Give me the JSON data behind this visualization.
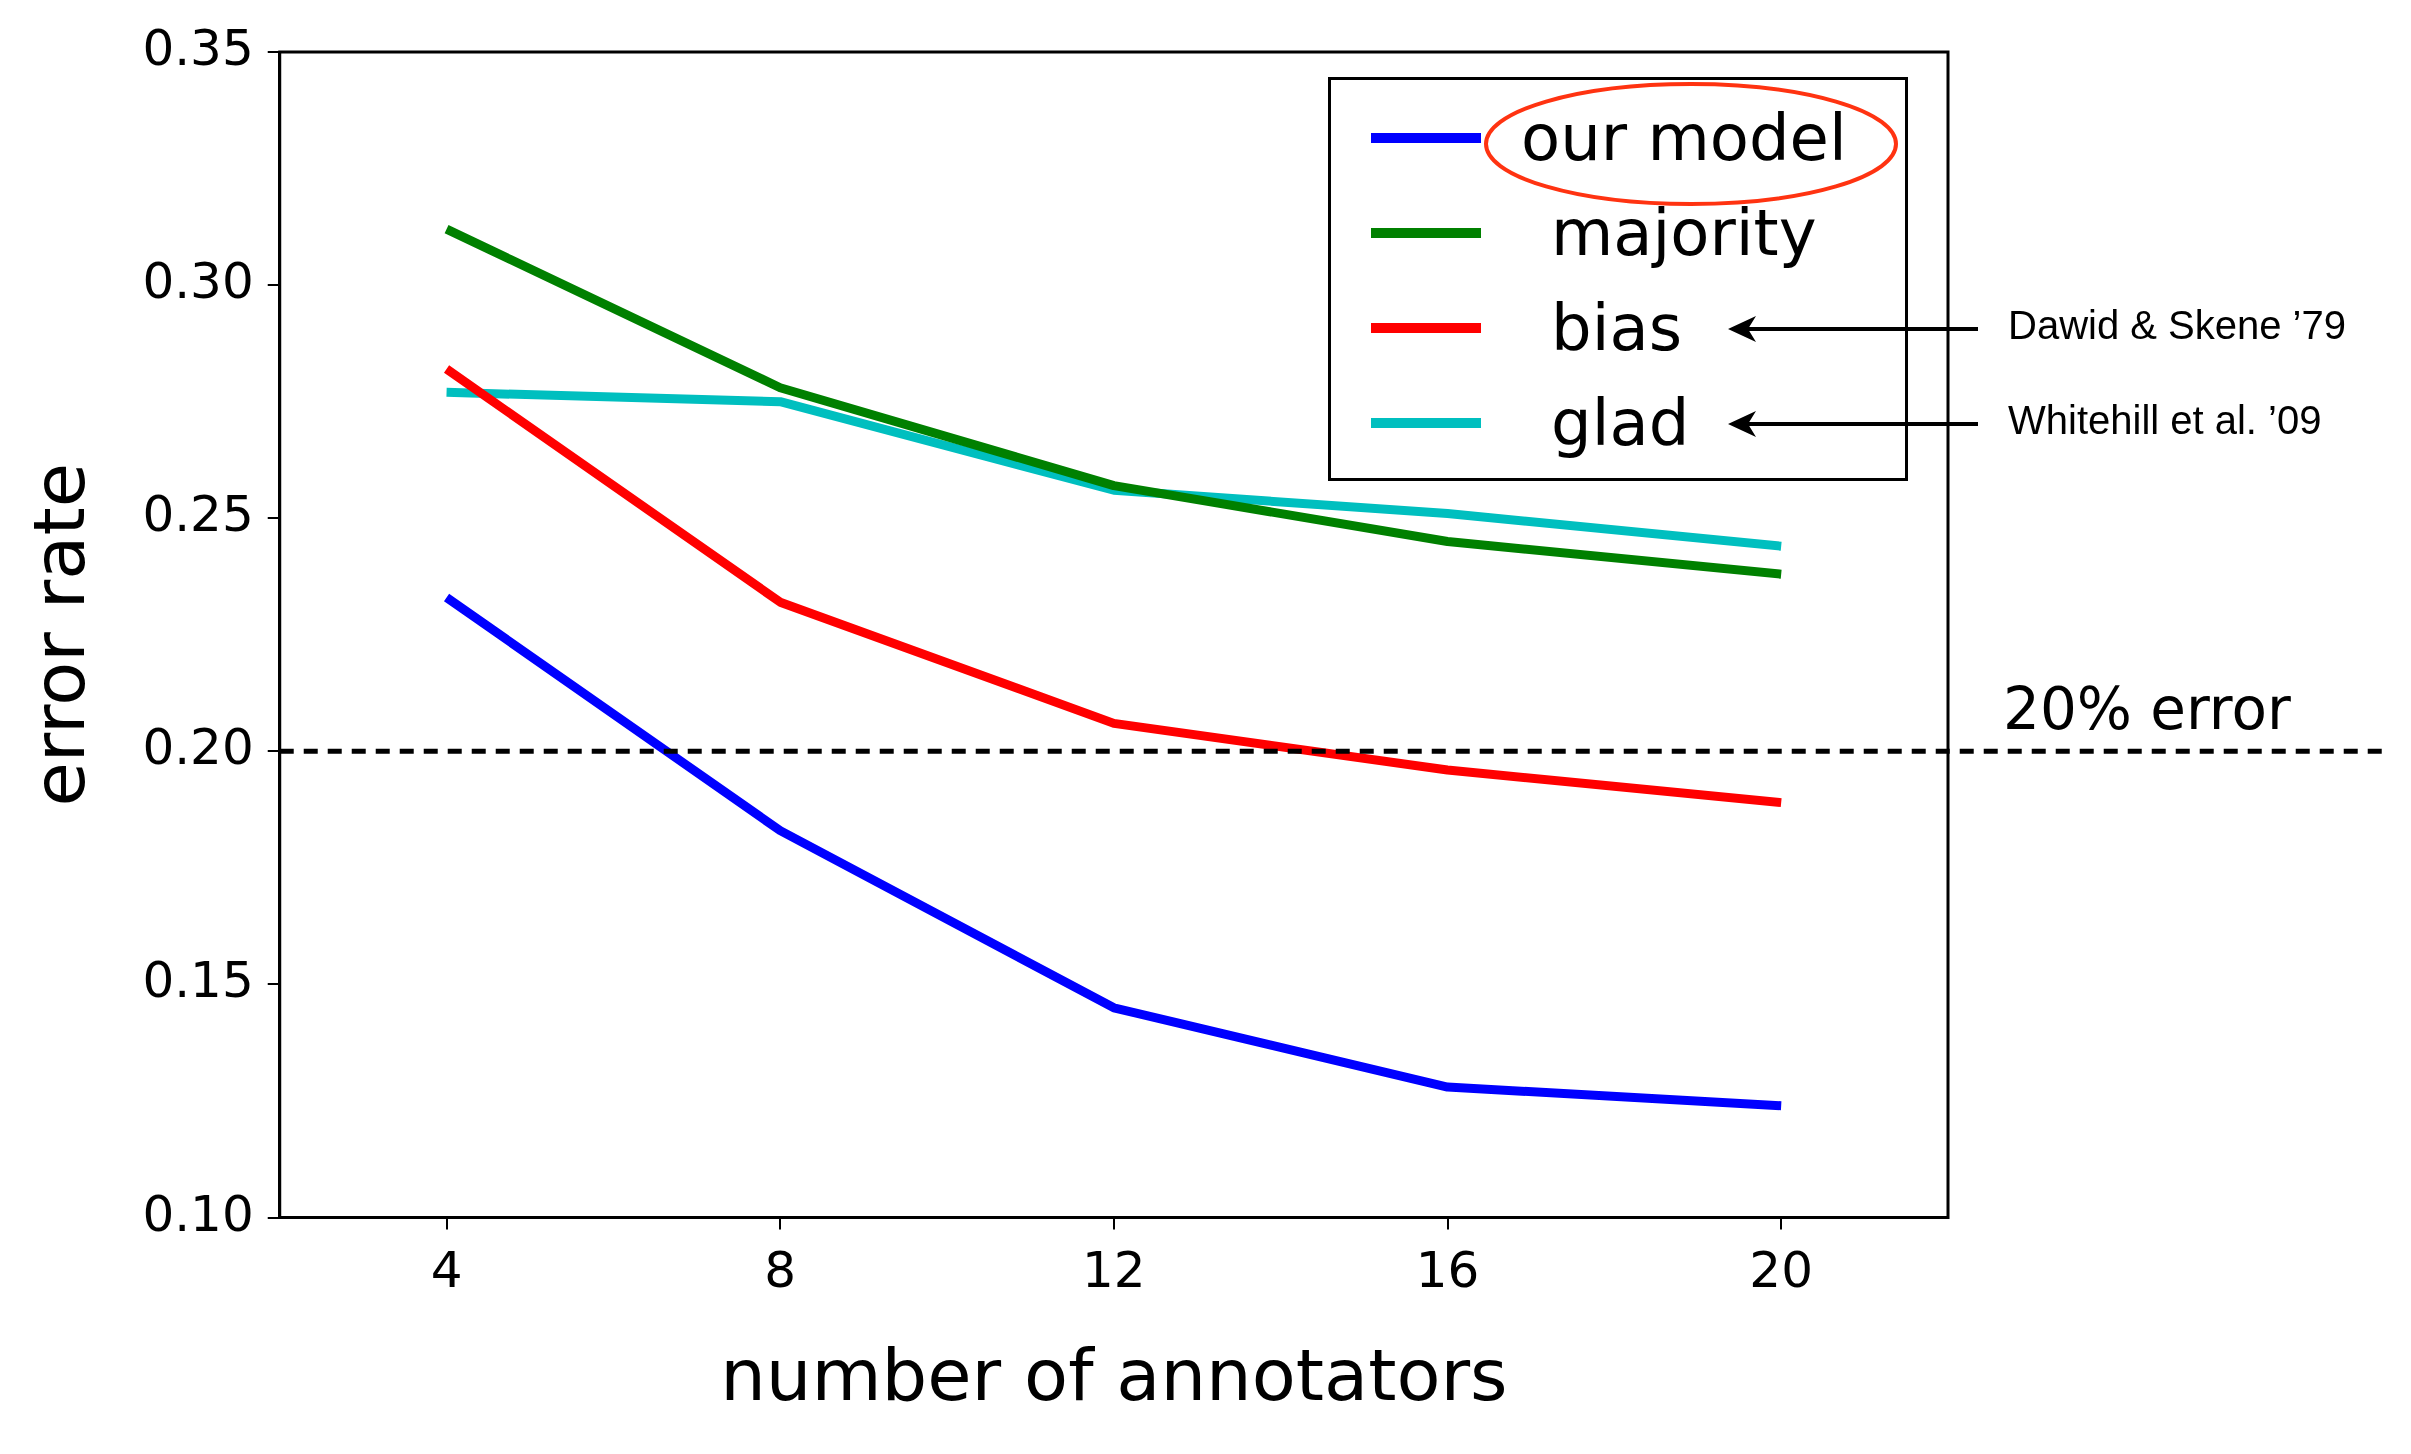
{
  "chart_data": {
    "type": "line",
    "xlabel": "number of annotators",
    "ylabel": "error rate",
    "x": [
      4,
      8,
      12,
      16,
      20
    ],
    "series": [
      {
        "name": "our model",
        "color": "#0000ff",
        "values": [
          0.233,
          0.183,
          0.145,
          0.128,
          0.124
        ]
      },
      {
        "name": "majority",
        "color": "#008000",
        "values": [
          0.312,
          0.278,
          0.257,
          0.245,
          0.238
        ]
      },
      {
        "name": "bias",
        "color": "#ff0000",
        "values": [
          0.282,
          0.232,
          0.206,
          0.196,
          0.189
        ]
      },
      {
        "name": "glad",
        "color": "#00bfbf",
        "values": [
          0.277,
          0.275,
          0.256,
          0.251,
          0.244
        ]
      }
    ],
    "xlim": [
      2,
      22
    ],
    "xticks": [
      4,
      8,
      12,
      16,
      20
    ],
    "ylim": [
      0.1,
      0.35
    ],
    "yticks": [
      {
        "value": 0.1,
        "label": "0.10"
      },
      {
        "value": 0.15,
        "label": "0.15"
      },
      {
        "value": 0.2,
        "label": "0.20"
      },
      {
        "value": 0.25,
        "label": "0.25"
      },
      {
        "value": 0.3,
        "label": "0.30"
      },
      {
        "value": 0.35,
        "label": "0.35"
      }
    ],
    "ref_lines": [
      {
        "axis": "y",
        "value": 0.2,
        "label": "20% error",
        "color": "#000000",
        "line_style": "dashed"
      }
    ],
    "annotations": [
      "Dawid & Skene ’79",
      "Whitehill et al. ’09"
    ],
    "legend": "top right",
    "marker": "none",
    "line_style": "solid",
    "grid": false
  }
}
